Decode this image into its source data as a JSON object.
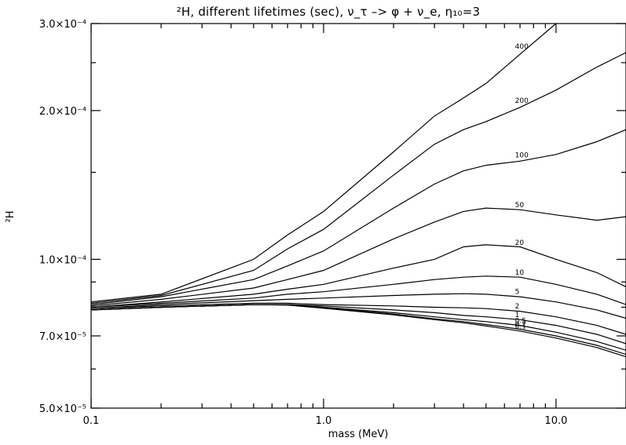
{
  "chart_data": {
    "type": "line",
    "title": "²H, different lifetimes (sec), ν_τ –> φ + ν_e, η₁₀=3",
    "xlabel": "mass (MeV)",
    "ylabel": "²H",
    "x_scale": "log",
    "y_scale": "log",
    "xlim": [
      0.1,
      20
    ],
    "ylim": [
      5e-05,
      0.0003
    ],
    "x_ticks": [
      {
        "value": 0.1,
        "label": "0.1"
      },
      {
        "value": 1.0,
        "label": "1.0"
      },
      {
        "value": 10.0,
        "label": "10.0"
      }
    ],
    "y_ticks": [
      {
        "value": 5e-05,
        "label": "5.0×10⁻⁵"
      },
      {
        "value": 7e-05,
        "label": "7.0×10⁻⁵"
      },
      {
        "value": 0.0001,
        "label": "1.0×10⁻⁴"
      },
      {
        "value": 0.0002,
        "label": "2.0×10⁻⁴"
      },
      {
        "value": 0.0003,
        "label": "3.0×10⁻⁴"
      }
    ],
    "legend": "none",
    "grid": false,
    "x": [
      0.1,
      0.2,
      0.5,
      0.7,
      1.0,
      2.0,
      3.0,
      4.0,
      5.0,
      7.0,
      10.0,
      15.0,
      20.0
    ],
    "series": [
      {
        "name": "400",
        "label_x": 7.2,
        "values": [
          8.2e-05,
          8.5e-05,
          0.0001,
          0.000112,
          0.000125,
          0.000165,
          0.000195,
          0.000212,
          0.000227,
          0.00026,
          0.0003,
          null,
          null
        ]
      },
      {
        "name": "200",
        "label_x": 7.2,
        "values": [
          8.15e-05,
          8.45e-05,
          9.5e-05,
          0.000105,
          0.000115,
          0.000148,
          0.000171,
          0.000183,
          0.00019,
          0.000203,
          0.00022,
          0.000245,
          0.000262
        ]
      },
      {
        "name": "100",
        "label_x": 7.2,
        "values": [
          8.1e-05,
          8.4e-05,
          9.1e-05,
          9.7e-05,
          0.000104,
          0.000127,
          0.000142,
          0.000151,
          0.000155,
          0.000158,
          0.000163,
          0.000173,
          0.000183
        ]
      },
      {
        "name": "50",
        "label_x": 7.2,
        "values": [
          8.05e-05,
          8.3e-05,
          8.75e-05,
          9.1e-05,
          9.5e-05,
          0.00011,
          0.000119,
          0.000125,
          0.000127,
          0.000126,
          0.000123,
          0.00012,
          0.000122
        ]
      },
      {
        "name": "20",
        "label_x": 7.2,
        "values": [
          8e-05,
          8.2e-05,
          8.5e-05,
          8.7e-05,
          8.9e-05,
          9.6e-05,
          0.0001,
          0.000106,
          0.000107,
          0.000106,
          0.0001,
          9.4e-05,
          8.8e-05
        ]
      },
      {
        "name": "10",
        "label_x": 7.2,
        "values": [
          8e-05,
          8.15e-05,
          8.35e-05,
          8.5e-05,
          8.6e-05,
          8.9e-05,
          9.1e-05,
          9.2e-05,
          9.25e-05,
          9.2e-05,
          8.9e-05,
          8.5e-05,
          8.1e-05
        ]
      },
      {
        "name": "5",
        "label_x": 7.2,
        "values": [
          7.95e-05,
          8.1e-05,
          8.25e-05,
          8.3e-05,
          8.35e-05,
          8.45e-05,
          8.5e-05,
          8.52e-05,
          8.5e-05,
          8.4e-05,
          8.2e-05,
          7.9e-05,
          7.6e-05
        ]
      },
      {
        "name": "2",
        "label_x": 7.2,
        "values": [
          7.95e-05,
          8.05e-05,
          8.15e-05,
          8.15e-05,
          8.1e-05,
          8.05e-05,
          8e-05,
          7.98e-05,
          7.95e-05,
          7.85e-05,
          7.65e-05,
          7.35e-05,
          7.05e-05
        ]
      },
      {
        "name": "1",
        "label_x": 7.2,
        "values": [
          7.9e-05,
          8e-05,
          8.1e-05,
          8.1e-05,
          8.05e-05,
          7.9e-05,
          7.8e-05,
          7.7e-05,
          7.65e-05,
          7.55e-05,
          7.35e-05,
          7.05e-05,
          6.75e-05
        ]
      },
      {
        "name": "0.5",
        "label_x": 7.2,
        "values": [
          7.9e-05,
          8e-05,
          8.1e-05,
          8.1e-05,
          8e-05,
          7.8e-05,
          7.65e-05,
          7.55e-05,
          7.48e-05,
          7.35e-05,
          7.12e-05,
          6.82e-05,
          6.55e-05
        ]
      },
      {
        "name": "0.2",
        "label_x": 7.2,
        "values": [
          7.9e-05,
          8e-05,
          8.1e-05,
          8.08e-05,
          7.98e-05,
          7.75e-05,
          7.58e-05,
          7.48e-05,
          7.38e-05,
          7.22e-05,
          7e-05,
          6.7e-05,
          6.42e-05
        ]
      },
      {
        "name": "0.1",
        "label_x": 7.2,
        "values": [
          7.9e-05,
          8e-05,
          8.1e-05,
          8.08e-05,
          7.96e-05,
          7.72e-05,
          7.55e-05,
          7.44e-05,
          7.33e-05,
          7.16e-05,
          6.93e-05,
          6.63e-05,
          6.35e-05
        ]
      }
    ]
  }
}
